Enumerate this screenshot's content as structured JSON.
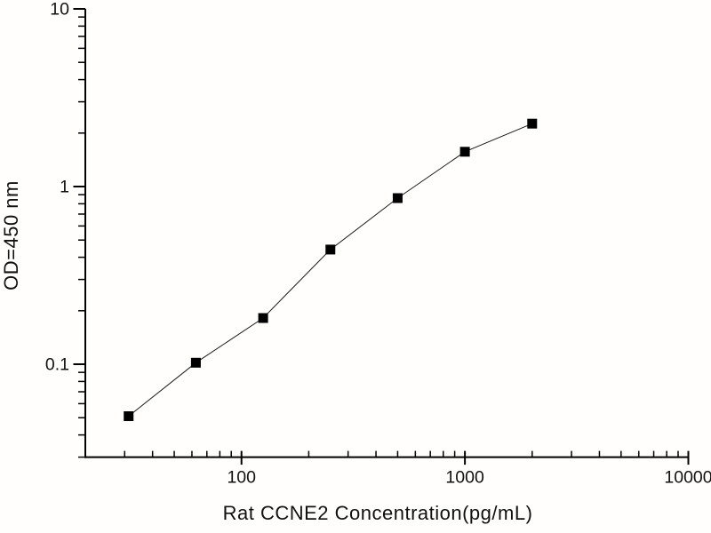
{
  "chart_data": {
    "type": "line",
    "marker": "filled-square",
    "title": "",
    "xlabel": "Rat CCNE2 Concentration(pg/mL)",
    "ylabel": "OD=450 nm",
    "xscale": "log",
    "yscale": "log",
    "xlim": [
      20,
      10000
    ],
    "ylim": [
      0.03,
      10
    ],
    "x": [
      31.25,
      62.5,
      125,
      250,
      500,
      1000,
      2000
    ],
    "y": [
      0.051,
      0.102,
      0.182,
      0.442,
      0.861,
      1.57,
      2.26
    ],
    "x_major_ticks": [
      100,
      1000,
      10000
    ],
    "x_major_tick_labels": [
      "100",
      "1000",
      "10000"
    ],
    "y_major_ticks": [
      10,
      1,
      0.1
    ],
    "y_major_tick_labels": [
      "10",
      "1",
      "0.1"
    ],
    "grid": false,
    "legend": false,
    "colors": {
      "axis": "#000000",
      "line": "#1a1a1a",
      "marker": "#000000",
      "background": "#ffffff"
    }
  }
}
